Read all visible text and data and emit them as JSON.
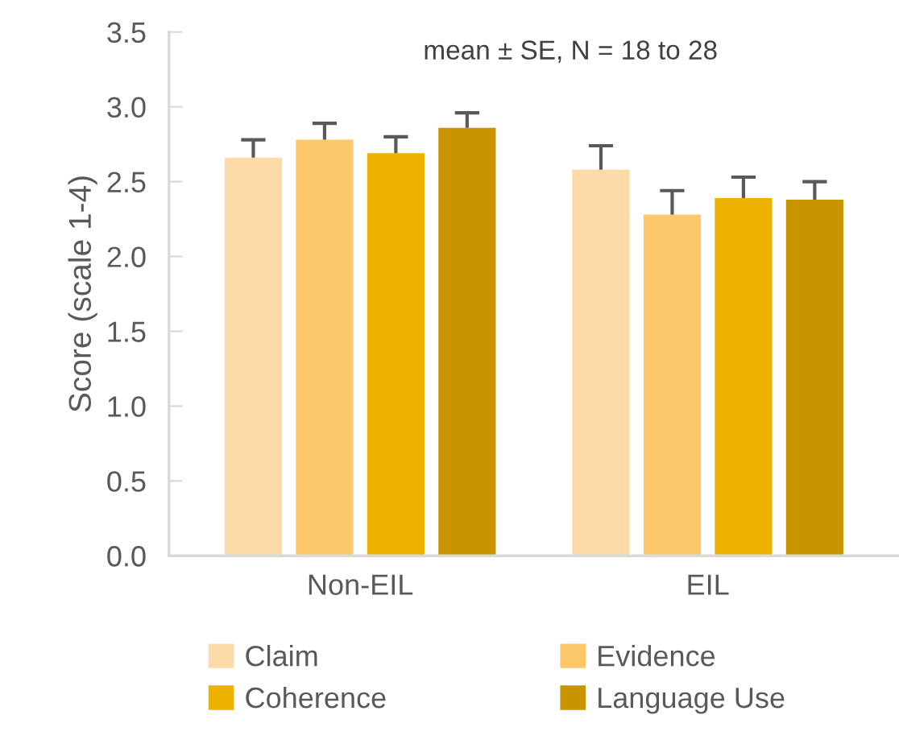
{
  "chart_data": {
    "type": "bar",
    "title": "mean ± SE, N = 18 to 28",
    "ylabel": "Score (scale 1-4)",
    "categories": [
      "Non-EIL",
      "EIL"
    ],
    "series": [
      {
        "name": "Claim",
        "color": "#fddba8",
        "values": [
          2.66,
          2.58
        ],
        "errors": [
          [
            2.66,
            2.78
          ],
          [
            2.58,
            2.74
          ]
        ]
      },
      {
        "name": "Evidence",
        "color": "#fdc76b",
        "values": [
          2.78,
          2.28
        ],
        "errors": [
          [
            2.78,
            2.89
          ],
          [
            2.28,
            2.44
          ]
        ]
      },
      {
        "name": "Coherence",
        "color": "#eeb200",
        "values": [
          2.69,
          2.39
        ],
        "errors": [
          [
            2.69,
            2.8
          ],
          [
            2.39,
            2.53
          ]
        ]
      },
      {
        "name": "Language Use",
        "color": "#c89500",
        "values": [
          2.86,
          2.38
        ],
        "errors": [
          [
            2.86,
            2.96
          ],
          [
            2.38,
            2.5
          ]
        ]
      }
    ],
    "ylim": [
      0,
      3.5
    ],
    "yticks": [
      {
        "value": 0,
        "label": "0.0"
      },
      {
        "value": 0.5,
        "label": "0.5"
      },
      {
        "value": 1,
        "label": "1.0"
      },
      {
        "value": 1.5,
        "label": "1.5"
      },
      {
        "value": 2,
        "label": "2.0"
      },
      {
        "value": 2.5,
        "label": "2.5"
      },
      {
        "value": 3,
        "label": "3.0"
      },
      {
        "value": 3.5,
        "label": "3.5"
      }
    ],
    "grid": false,
    "legend": "bottom"
  }
}
